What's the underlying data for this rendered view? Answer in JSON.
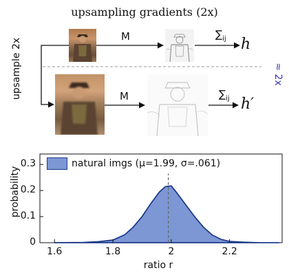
{
  "diagram": {
    "title": "upsampling gradients (2x)",
    "side_label": "upsample 2x",
    "op_label_top": "M",
    "op_label_bottom": "M",
    "sum_top": "∑",
    "sum_top_sub": "ij",
    "sum_bottom": "∑",
    "sum_bottom_sub": "ij",
    "result_top": "h",
    "result_bottom": "h′",
    "approx_label": "≈ 2x",
    "colors": {
      "approx": "#3a3ab0",
      "dashed": "#999999"
    }
  },
  "chart_data": {
    "type": "area",
    "xlabel": "ratio r",
    "ylabel": "probability",
    "xlim": [
      1.55,
      2.38
    ],
    "ylim": [
      0,
      0.34
    ],
    "x_ticks": [
      "1.6",
      "1.8",
      "2",
      "2.2"
    ],
    "x_tick_values": [
      1.6,
      1.8,
      2.0,
      2.2
    ],
    "y_ticks": [
      "0",
      "0.1",
      "0.2",
      "0.3"
    ],
    "y_tick_values": [
      0,
      0.1,
      0.2,
      0.3
    ],
    "legend": "natural imgs (μ=1.99, σ=.061)",
    "legend_position": "top-left",
    "mean_line": 1.99,
    "series": [
      {
        "name": "natural imgs (μ=1.99, σ=.061)",
        "x": [
          1.6,
          1.7,
          1.75,
          1.8,
          1.84,
          1.87,
          1.9,
          1.93,
          1.96,
          1.98,
          2.0,
          2.02,
          2.05,
          2.08,
          2.11,
          2.14,
          2.17,
          2.2,
          2.25,
          2.3,
          2.37
        ],
        "values": [
          0.0,
          0.001,
          0.004,
          0.01,
          0.03,
          0.06,
          0.1,
          0.15,
          0.195,
          0.215,
          0.218,
          0.19,
          0.145,
          0.1,
          0.06,
          0.03,
          0.013,
          0.005,
          0.002,
          0.0,
          0.0
        ]
      }
    ],
    "colors": {
      "fill": "#7d96d4",
      "stroke": "#1f3c8c"
    }
  }
}
